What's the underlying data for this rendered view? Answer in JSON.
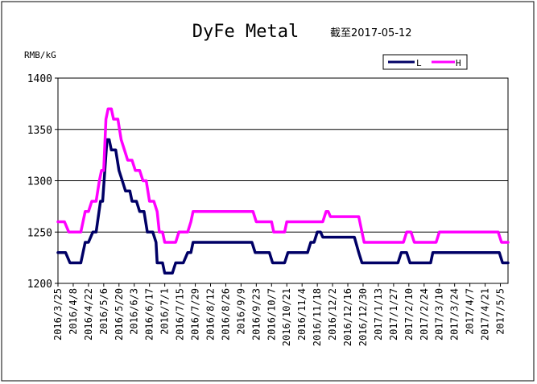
{
  "chart_data": {
    "type": "line",
    "title": "DyFe Metal",
    "subtitle": "截至2017-05-12",
    "ylabel": "RMB/kG",
    "xlabel": "",
    "ylim": [
      1200,
      1400
    ],
    "yticks": [
      1200,
      1250,
      1300,
      1350,
      1400
    ],
    "grid": "horizontal",
    "legend": "top-right",
    "x_tick_labels": [
      "2016/3/25",
      "2016/4/8",
      "2016/4/22",
      "2016/5/6",
      "2016/5/20",
      "2016/6/3",
      "2016/6/17",
      "2016/7/1",
      "2016/7/15",
      "2016/7/29",
      "2016/8/12",
      "2016/8/26",
      "2016/9/9",
      "2016/9/23",
      "2016/10/7",
      "2016/10/21",
      "2016/11/4",
      "2016/11/18",
      "2016/12/2",
      "2016/12/16",
      "2016/12/30",
      "2017/1/13",
      "2017/1/27",
      "2017/2/10",
      "2017/2/24",
      "2017/3/10",
      "2017/3/24",
      "2017/4/7",
      "2017/4/21",
      "2017/5/5"
    ],
    "x_end": "2017/5/12",
    "series": [
      {
        "name": "L",
        "color": "#000066",
        "points": [
          [
            "2016/3/25",
            1230
          ],
          [
            "2016/4/1",
            1230
          ],
          [
            "2016/4/5",
            1220
          ],
          [
            "2016/4/15",
            1220
          ],
          [
            "2016/4/19",
            1240
          ],
          [
            "2016/4/22",
            1240
          ],
          [
            "2016/4/26",
            1250
          ],
          [
            "2016/4/29",
            1250
          ],
          [
            "2016/5/3",
            1280
          ],
          [
            "2016/5/5",
            1280
          ],
          [
            "2016/5/9",
            1340
          ],
          [
            "2016/5/11",
            1340
          ],
          [
            "2016/5/13",
            1330
          ],
          [
            "2016/5/17",
            1330
          ],
          [
            "2016/5/20",
            1310
          ],
          [
            "2016/5/23",
            1300
          ],
          [
            "2016/5/26",
            1290
          ],
          [
            "2016/5/30",
            1290
          ],
          [
            "2016/6/1",
            1280
          ],
          [
            "2016/6/5",
            1280
          ],
          [
            "2016/6/8",
            1270
          ],
          [
            "2016/6/12",
            1270
          ],
          [
            "2016/6/15",
            1250
          ],
          [
            "2016/6/20",
            1250
          ],
          [
            "2016/6/23",
            1240
          ],
          [
            "2016/6/24",
            1220
          ],
          [
            "2016/6/29",
            1220
          ],
          [
            "2016/7/1",
            1210
          ],
          [
            "2016/7/8",
            1210
          ],
          [
            "2016/7/11",
            1220
          ],
          [
            "2016/7/18",
            1220
          ],
          [
            "2016/7/22",
            1230
          ],
          [
            "2016/7/25",
            1230
          ],
          [
            "2016/7/27",
            1240
          ],
          [
            "2016/9/19",
            1240
          ],
          [
            "2016/9/22",
            1230
          ],
          [
            "2016/10/5",
            1230
          ],
          [
            "2016/10/8",
            1220
          ],
          [
            "2016/10/19",
            1220
          ],
          [
            "2016/10/22",
            1230
          ],
          [
            "2016/11/9",
            1230
          ],
          [
            "2016/11/12",
            1240
          ],
          [
            "2016/11/15",
            1240
          ],
          [
            "2016/11/18",
            1250
          ],
          [
            "2016/11/21",
            1250
          ],
          [
            "2016/11/23",
            1245
          ],
          [
            "2016/12/22",
            1245
          ],
          [
            "2016/12/26",
            1230
          ],
          [
            "2016/12/29",
            1220
          ],
          [
            "2017/1/31",
            1220
          ],
          [
            "2017/2/3",
            1230
          ],
          [
            "2017/2/8",
            1230
          ],
          [
            "2017/2/11",
            1220
          ],
          [
            "2017/3/2",
            1220
          ],
          [
            "2017/3/4",
            1230
          ],
          [
            "2017/5/4",
            1230
          ],
          [
            "2017/5/7",
            1220
          ],
          [
            "2017/5/12",
            1220
          ]
        ]
      },
      {
        "name": "H",
        "color": "#FF00FF",
        "points": [
          [
            "2016/3/25",
            1260
          ],
          [
            "2016/3/31",
            1260
          ],
          [
            "2016/4/4",
            1250
          ],
          [
            "2016/4/15",
            1250
          ],
          [
            "2016/4/19",
            1270
          ],
          [
            "2016/4/22",
            1270
          ],
          [
            "2016/4/25",
            1280
          ],
          [
            "2016/4/29",
            1280
          ],
          [
            "2016/5/2",
            1300
          ],
          [
            "2016/5/4",
            1310
          ],
          [
            "2016/5/6",
            1310
          ],
          [
            "2016/5/8",
            1360
          ],
          [
            "2016/5/10",
            1370
          ],
          [
            "2016/5/13",
            1370
          ],
          [
            "2016/5/15",
            1360
          ],
          [
            "2016/5/19",
            1360
          ],
          [
            "2016/5/22",
            1340
          ],
          [
            "2016/5/25",
            1330
          ],
          [
            "2016/5/28",
            1320
          ],
          [
            "2016/6/1",
            1320
          ],
          [
            "2016/6/4",
            1310
          ],
          [
            "2016/6/8",
            1310
          ],
          [
            "2016/6/11",
            1300
          ],
          [
            "2016/6/14",
            1300
          ],
          [
            "2016/6/17",
            1280
          ],
          [
            "2016/6/21",
            1280
          ],
          [
            "2016/6/24",
            1270
          ],
          [
            "2016/6/26",
            1250
          ],
          [
            "2016/6/29",
            1250
          ],
          [
            "2016/7/1",
            1240
          ],
          [
            "2016/7/11",
            1240
          ],
          [
            "2016/7/14",
            1250
          ],
          [
            "2016/7/22",
            1250
          ],
          [
            "2016/7/25",
            1260
          ],
          [
            "2016/7/27",
            1270
          ],
          [
            "2016/9/20",
            1270
          ],
          [
            "2016/9/23",
            1260
          ],
          [
            "2016/10/7",
            1260
          ],
          [
            "2016/10/9",
            1250
          ],
          [
            "2016/10/19",
            1250
          ],
          [
            "2016/10/21",
            1260
          ],
          [
            "2016/11/23",
            1260
          ],
          [
            "2016/11/26",
            1270
          ],
          [
            "2016/11/28",
            1270
          ],
          [
            "2016/11/30",
            1265
          ],
          [
            "2016/12/26",
            1265
          ],
          [
            "2016/12/29",
            1250
          ],
          [
            "2016/12/31",
            1240
          ],
          [
            "2017/2/5",
            1240
          ],
          [
            "2017/2/8",
            1250
          ],
          [
            "2017/2/12",
            1250
          ],
          [
            "2017/2/15",
            1240
          ],
          [
            "2017/3/7",
            1240
          ],
          [
            "2017/3/10",
            1250
          ],
          [
            "2017/5/3",
            1250
          ],
          [
            "2017/5/6",
            1240
          ],
          [
            "2017/5/12",
            1240
          ]
        ]
      }
    ]
  }
}
